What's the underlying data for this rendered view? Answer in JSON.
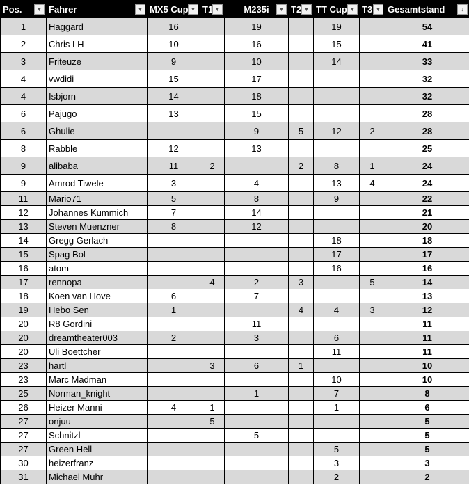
{
  "headers": [
    "Pos.",
    "Fahrer",
    "MX5 Cup",
    "T1",
    "M235i",
    "T2",
    "TT Cup",
    "T3",
    "Gesamtstand"
  ],
  "sort_icon": "sort-descending-icon",
  "filter_icon": "filter-dropdown-icon",
  "rows": [
    [
      "1",
      "Haggard",
      "16",
      "",
      "19",
      "",
      "19",
      "",
      "54"
    ],
    [
      "2",
      "Chris LH",
      "10",
      "",
      "16",
      "",
      "15",
      "",
      "41"
    ],
    [
      "3",
      "Friteuze",
      "9",
      "",
      "10",
      "",
      "14",
      "",
      "33"
    ],
    [
      "4",
      "vwdidi",
      "15",
      "",
      "17",
      "",
      "",
      "",
      "32"
    ],
    [
      "4",
      "Isbjorn",
      "14",
      "",
      "18",
      "",
      "",
      "",
      "32"
    ],
    [
      "6",
      "Pajugo",
      "13",
      "",
      "15",
      "",
      "",
      "",
      "28"
    ],
    [
      "6",
      "Ghulie",
      "",
      "",
      "9",
      "5",
      "12",
      "2",
      "28"
    ],
    [
      "8",
      "Rabble",
      "12",
      "",
      "13",
      "",
      "",
      "",
      "25"
    ],
    [
      "9",
      "alibaba",
      "11",
      "2",
      "",
      "2",
      "8",
      "1",
      "24"
    ],
    [
      "9",
      "Amrod Tiwele",
      "3",
      "",
      "4",
      "",
      "13",
      "4",
      "24"
    ],
    [
      "11",
      "Mario71",
      "5",
      "",
      "8",
      "",
      "9",
      "",
      "22"
    ],
    [
      "12",
      "Johannes Kummich",
      "7",
      "",
      "14",
      "",
      "",
      "",
      "21"
    ],
    [
      "13",
      "Steven Muenzner",
      "8",
      "",
      "12",
      "",
      "",
      "",
      "20"
    ],
    [
      "14",
      "Gregg Gerlach",
      "",
      "",
      "",
      "",
      "18",
      "",
      "18"
    ],
    [
      "15",
      "Spag Bol",
      "",
      "",
      "",
      "",
      "17",
      "",
      "17"
    ],
    [
      "16",
      "atom",
      "",
      "",
      "",
      "",
      "16",
      "",
      "16"
    ],
    [
      "17",
      "rennopa",
      "",
      "4",
      "2",
      "3",
      "",
      "5",
      "14"
    ],
    [
      "18",
      "Koen van Hove",
      "6",
      "",
      "7",
      "",
      "",
      "",
      "13"
    ],
    [
      "19",
      "Hebo Sen",
      "1",
      "",
      "",
      "4",
      "4",
      "3",
      "12"
    ],
    [
      "20",
      "R8 Gordini",
      "",
      "",
      "11",
      "",
      "",
      "",
      "11"
    ],
    [
      "20",
      "dreamtheater003",
      "2",
      "",
      "3",
      "",
      "6",
      "",
      "11"
    ],
    [
      "20",
      "Uli Boettcher",
      "",
      "",
      "",
      "",
      "11",
      "",
      "11"
    ],
    [
      "23",
      "hartl",
      "",
      "3",
      "6",
      "1",
      "",
      "",
      "10"
    ],
    [
      "23",
      "Marc Madman",
      "",
      "",
      "",
      "",
      "10",
      "",
      "10"
    ],
    [
      "25",
      "Norman_knight",
      "",
      "",
      "1",
      "",
      "7",
      "",
      "8"
    ],
    [
      "26",
      "Heizer Manni",
      "4",
      "1",
      "",
      "",
      "1",
      "",
      "6"
    ],
    [
      "27",
      "onjuu",
      "",
      "5",
      "",
      "",
      "",
      "",
      "5"
    ],
    [
      "27",
      "Schnitzl",
      "",
      "",
      "5",
      "",
      "",
      "",
      "5"
    ],
    [
      "27",
      "Green Hell",
      "",
      "",
      "",
      "",
      "5",
      "",
      "5"
    ],
    [
      "30",
      "heizerfranz",
      "",
      "",
      "",
      "",
      "3",
      "",
      "3"
    ],
    [
      "31",
      "Michael Muhr",
      "",
      "",
      "",
      "",
      "2",
      "",
      "2"
    ]
  ]
}
